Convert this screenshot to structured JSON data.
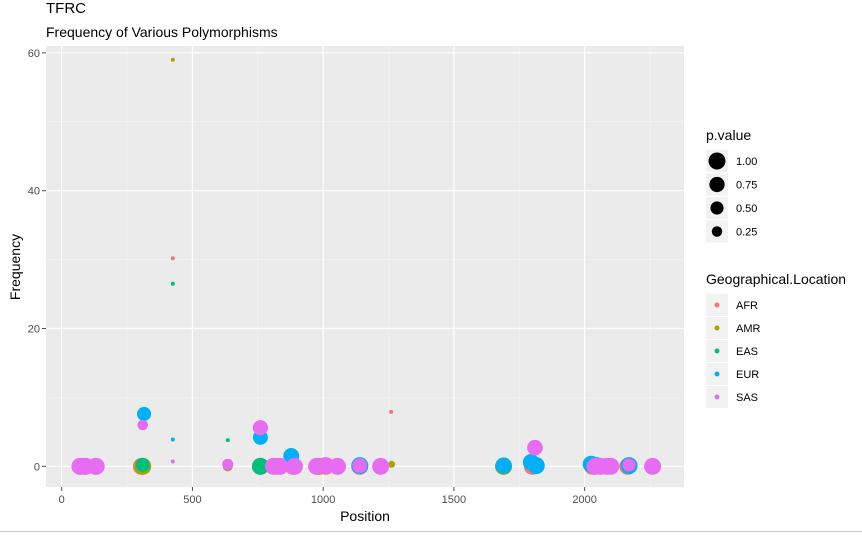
{
  "chart_data": {
    "type": "scatter",
    "title": "TFRC",
    "subtitle": "Frequency of Various Polymorphisms",
    "xlabel": "Position",
    "ylabel": "Frequency",
    "xlim": [
      -60,
      2380
    ],
    "ylim": [
      -3,
      61
    ],
    "x_ticks": [
      0,
      500,
      1000,
      1500,
      2000
    ],
    "y_ticks": [
      0,
      20,
      40,
      60
    ],
    "grid": true,
    "background": "#ebebeb",
    "size_legend": {
      "title": "p.value",
      "entries": [
        {
          "label": "1.00",
          "value": 1.0
        },
        {
          "label": "0.75",
          "value": 0.75
        },
        {
          "label": "0.50",
          "value": 0.5
        },
        {
          "label": "0.25",
          "value": 0.25
        }
      ]
    },
    "color_legend": {
      "title": "Geographical.Location",
      "entries": [
        {
          "label": "AFR",
          "color": "#F8766D"
        },
        {
          "label": "AMR",
          "color": "#A3A500"
        },
        {
          "label": "EAS",
          "color": "#00BF7D"
        },
        {
          "label": "EUR",
          "color": "#00B0F6"
        },
        {
          "label": "SAS",
          "color": "#E76BF3"
        }
      ]
    },
    "series": [
      {
        "name": "AFR",
        "color": "#F8766D",
        "points": [
          {
            "x": 70,
            "y": 0,
            "p": 1.0
          },
          {
            "x": 85,
            "y": 0,
            "p": 1.0
          },
          {
            "x": 130,
            "y": 0,
            "p": 1.0
          },
          {
            "x": 305,
            "y": 0,
            "p": 1.0
          },
          {
            "x": 425,
            "y": 30.2,
            "p": 0.0
          },
          {
            "x": 635,
            "y": 0,
            "p": 0.2
          },
          {
            "x": 760,
            "y": 0,
            "p": 1.0
          },
          {
            "x": 820,
            "y": 0,
            "p": 1.0
          },
          {
            "x": 885,
            "y": 0,
            "p": 1.0
          },
          {
            "x": 985,
            "y": 0,
            "p": 1.0
          },
          {
            "x": 1010,
            "y": 0,
            "p": 1.0
          },
          {
            "x": 1140,
            "y": 0,
            "p": 1.0
          },
          {
            "x": 1260,
            "y": 7.9,
            "p": 0.0
          },
          {
            "x": 1690,
            "y": 0,
            "p": 1.0
          },
          {
            "x": 1800,
            "y": 0,
            "p": 1.0
          },
          {
            "x": 2030,
            "y": 0,
            "p": 1.0
          },
          {
            "x": 2165,
            "y": 0,
            "p": 1.0
          }
        ]
      },
      {
        "name": "AMR",
        "color": "#A3A500",
        "points": [
          {
            "x": 310,
            "y": 0,
            "p": 1.0
          },
          {
            "x": 425,
            "y": 59,
            "p": 0.0
          },
          {
            "x": 635,
            "y": 0,
            "p": 0.2
          },
          {
            "x": 980,
            "y": 0,
            "p": 1.0
          },
          {
            "x": 1262,
            "y": 0.3,
            "p": 0.05
          },
          {
            "x": 1690,
            "y": 0,
            "p": 1.0
          }
        ]
      },
      {
        "name": "EAS",
        "color": "#00BF7D",
        "points": [
          {
            "x": 310,
            "y": 0.2,
            "p": 0.6
          },
          {
            "x": 425,
            "y": 26.5,
            "p": 0.0
          },
          {
            "x": 635,
            "y": 3.8,
            "p": 0.0
          },
          {
            "x": 760,
            "y": 0,
            "p": 1.0
          },
          {
            "x": 1690,
            "y": 0.1,
            "p": 0.9
          }
        ]
      },
      {
        "name": "EUR",
        "color": "#00B0F6",
        "points": [
          {
            "x": 315,
            "y": 7.6,
            "p": 0.6
          },
          {
            "x": 425,
            "y": 3.9,
            "p": 0.0
          },
          {
            "x": 760,
            "y": 4.2,
            "p": 0.7
          },
          {
            "x": 878,
            "y": 1.5,
            "p": 0.85
          },
          {
            "x": 1140,
            "y": 0.1,
            "p": 1.0
          },
          {
            "x": 1690,
            "y": 0.1,
            "p": 0.9
          },
          {
            "x": 1795,
            "y": 0.6,
            "p": 0.9
          },
          {
            "x": 1815,
            "y": 0.1,
            "p": 1.0
          },
          {
            "x": 2025,
            "y": 0.3,
            "p": 1.0
          },
          {
            "x": 2045,
            "y": 0.1,
            "p": 1.0
          },
          {
            "x": 2170,
            "y": 0.1,
            "p": 1.0
          }
        ]
      },
      {
        "name": "SAS",
        "color": "#E76BF3",
        "points": [
          {
            "x": 70,
            "y": 0,
            "p": 1.0
          },
          {
            "x": 92,
            "y": 0,
            "p": 1.0
          },
          {
            "x": 132,
            "y": 0,
            "p": 1.0
          },
          {
            "x": 310,
            "y": 6.0,
            "p": 0.25
          },
          {
            "x": 425,
            "y": 0.7,
            "p": 0.0
          },
          {
            "x": 635,
            "y": 0.3,
            "p": 0.3
          },
          {
            "x": 760,
            "y": 5.6,
            "p": 0.75
          },
          {
            "x": 810,
            "y": 0,
            "p": 1.0
          },
          {
            "x": 835,
            "y": 0,
            "p": 1.0
          },
          {
            "x": 890,
            "y": 0,
            "p": 1.0
          },
          {
            "x": 975,
            "y": 0,
            "p": 1.0
          },
          {
            "x": 1010,
            "y": 0.1,
            "p": 1.0
          },
          {
            "x": 1055,
            "y": 0,
            "p": 1.0
          },
          {
            "x": 1140,
            "y": 0.1,
            "p": 0.7
          },
          {
            "x": 1220,
            "y": 0,
            "p": 1.0
          },
          {
            "x": 1810,
            "y": 2.7,
            "p": 0.8
          },
          {
            "x": 2040,
            "y": 0,
            "p": 1.0
          },
          {
            "x": 2060,
            "y": 0,
            "p": 1.0
          },
          {
            "x": 2085,
            "y": 0,
            "p": 1.0
          },
          {
            "x": 2100,
            "y": 0,
            "p": 1.0
          },
          {
            "x": 2170,
            "y": 0.2,
            "p": 0.5
          },
          {
            "x": 2260,
            "y": 0,
            "p": 1.0
          }
        ]
      }
    ]
  }
}
